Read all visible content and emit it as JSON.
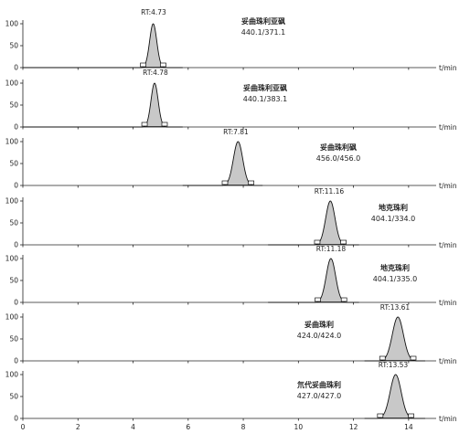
{
  "chart_data": {
    "type": "line",
    "x_axis": {
      "min": 0,
      "max": 15,
      "ticks": [
        0,
        2,
        4,
        6,
        8,
        10,
        12,
        14
      ],
      "unit": "t/min"
    },
    "y_axis": {
      "min": 0,
      "max": 100,
      "ticks": [
        0,
        50,
        100
      ]
    },
    "panels": [
      {
        "rt_label": "RT:4.73",
        "compound": "妥曲珠利亚砜",
        "transition": "440.1/371.1",
        "rt": 4.73,
        "peak_height": 100,
        "peak_width": 0.13,
        "baseline_range": [
          0,
          5.8
        ]
      },
      {
        "rt_label": "RT:4.78",
        "compound": "妥曲珠利亚砜",
        "transition": "440.1/383.1",
        "rt": 4.78,
        "peak_height": 100,
        "peak_width": 0.13,
        "baseline_range": [
          0,
          5.8
        ]
      },
      {
        "rt_label": "RT:7.81",
        "compound": "妥曲珠利砜",
        "transition": "456.0/456.0",
        "rt": 7.81,
        "peak_height": 100,
        "peak_width": 0.17,
        "baseline_range": [
          5.8,
          8.7
        ]
      },
      {
        "rt_label": "RT:11.16",
        "compound": "地克珠利",
        "transition": "404.1/334.0",
        "rt": 11.16,
        "peak_height": 100,
        "peak_width": 0.17,
        "baseline_range": [
          8.9,
          12.2
        ]
      },
      {
        "rt_label": "RT:11.18",
        "compound": "地克珠利",
        "transition": "404.1/335.0",
        "rt": 11.18,
        "peak_height": 100,
        "peak_width": 0.17,
        "baseline_range": [
          8.9,
          12.2
        ]
      },
      {
        "rt_label": "RT:13.61",
        "compound": "妥曲珠利",
        "transition": "424.0/424.0",
        "rt": 13.61,
        "peak_height": 100,
        "peak_width": 0.2,
        "baseline_range": [
          12.4,
          14.6
        ]
      },
      {
        "rt_label": "RT:13.53",
        "compound": "氘代妥曲珠利",
        "transition": "427.0/427.0",
        "rt": 13.53,
        "peak_height": 100,
        "peak_width": 0.2,
        "baseline_range": [
          12.4,
          14.6
        ]
      }
    ]
  }
}
